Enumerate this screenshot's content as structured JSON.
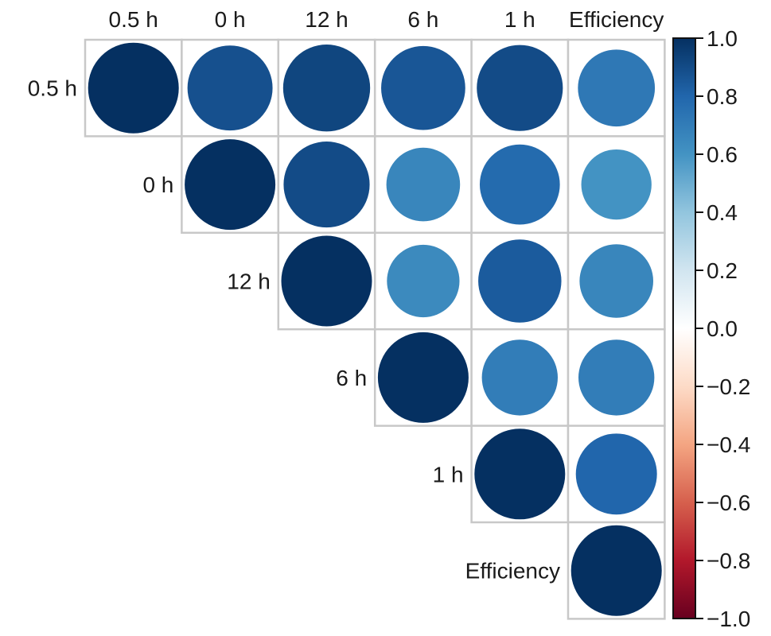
{
  "chart_data": {
    "type": "heatmap",
    "subtype": "correlation-circle-upper-triangle",
    "variables": [
      "0.5 h",
      "0 h",
      "12 h",
      "6 h",
      "1 h",
      "Efficiency"
    ],
    "matrix": [
      [
        1.0,
        0.88,
        0.92,
        0.86,
        0.9,
        0.72
      ],
      [
        0.88,
        1.0,
        0.9,
        0.66,
        0.78,
        0.6
      ],
      [
        0.92,
        0.9,
        1.0,
        0.64,
        0.84,
        0.66
      ],
      [
        0.86,
        0.66,
        0.64,
        1.0,
        0.7,
        0.7
      ],
      [
        0.9,
        0.78,
        0.84,
        0.7,
        1.0,
        0.8
      ],
      [
        0.72,
        0.6,
        0.66,
        0.7,
        0.8,
        1.0
      ]
    ],
    "colorbar": {
      "min": -1.0,
      "max": 1.0,
      "ticks": [
        "1.0",
        "0.8",
        "0.6",
        "0.4",
        "0.2",
        "0.0",
        "−0.2",
        "−0.4",
        "−0.6",
        "−0.8",
        "−1.0"
      ],
      "colors": {
        "high": "#053061",
        "mid": "#ffffff",
        "low": "#67001f"
      },
      "placement": "right"
    },
    "grid_color": "#c8c8c8",
    "title": "",
    "xlabel": "",
    "ylabel": ""
  }
}
